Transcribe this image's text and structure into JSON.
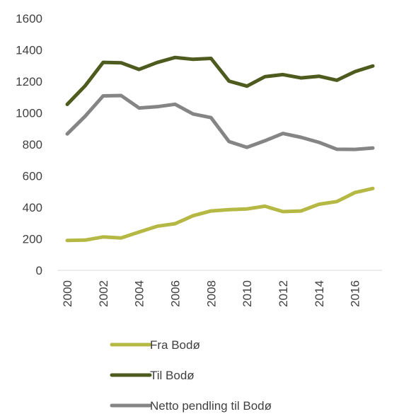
{
  "chart_data": {
    "type": "line",
    "title": "",
    "xlabel": "",
    "ylabel": "",
    "x": [
      2000,
      2001,
      2002,
      2003,
      2004,
      2005,
      2006,
      2007,
      2008,
      2009,
      2010,
      2011,
      2012,
      2013,
      2014,
      2015,
      2016,
      2017
    ],
    "x_tick_labels": [
      "2000",
      "2002",
      "2004",
      "2006",
      "2008",
      "2010",
      "2012",
      "2014",
      "2016"
    ],
    "y_ticks": [
      0,
      200,
      400,
      600,
      800,
      1000,
      1200,
      1400,
      1600
    ],
    "ylim": [
      0,
      1600
    ],
    "grid": false,
    "legend_position": "bottom",
    "series": [
      {
        "name": "Fra Bodø",
        "color": "#b5b843",
        "values": [
          190,
          192,
          212,
          206,
          243,
          280,
          296,
          347,
          377,
          385,
          390,
          407,
          373,
          377,
          420,
          437,
          494,
          520
        ]
      },
      {
        "name": "Til Bodø",
        "color": "#4e5b1e",
        "values": [
          1054,
          1172,
          1321,
          1318,
          1276,
          1320,
          1352,
          1340,
          1346,
          1202,
          1170,
          1230,
          1243,
          1222,
          1233,
          1207,
          1262,
          1298
        ]
      },
      {
        "name": "Netto pendling til Bodø",
        "color": "#858585",
        "values": [
          866,
          979,
          1108,
          1110,
          1031,
          1039,
          1055,
          993,
          970,
          818,
          781,
          823,
          869,
          845,
          813,
          769,
          768,
          777
        ]
      }
    ]
  }
}
